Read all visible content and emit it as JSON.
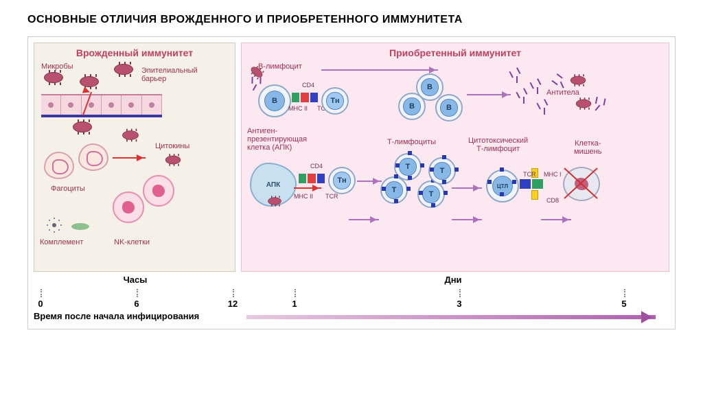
{
  "title": "ОСНОВНЫЕ ОТЛИЧИЯ ВРОЖДЕННОГО И ПРИОБРЕТЕННОГО ИММУНИТЕТА",
  "colors": {
    "innate_bg": "#f5f0e8",
    "adaptive_bg": "#fce8f0",
    "label_text": "#a03050",
    "header_text": "#c04060",
    "microbe": "#b85070",
    "epi_border": "#3838a0",
    "nucleus": "#88b8e8",
    "arrow_purple": "#b070c0",
    "arrow_red": "#e03030",
    "mhc": "#30a060",
    "cd4": "#e04040",
    "tcr": "#3040c0",
    "cd8": "#f8d020",
    "antibody": "#8040a0"
  },
  "innate": {
    "header": "Врожденный иммунитет",
    "microbes_label": "Микробы",
    "epithelial_label": "Эпителиальный\nбарьер",
    "cytokines_label": "Цитокины",
    "phagocytes_label": "Фагоциты",
    "complement_label": "Комплемент",
    "nk_label": "NK-клетки"
  },
  "adaptive": {
    "header": "Приобретенный иммунитет",
    "b_lymphocyte_label": "В-лимфоцит",
    "apc_label": "Антиген-\nпрезентирующая\nклетка (АПК)",
    "apc_short": "АПК",
    "t_lymphocytes_label": "Т-лимфоциты",
    "ctl_label": "Цитотоксический\nТ-лимфоцит",
    "antibodies_label": "Антитела",
    "target_label": "Клетка-\nмишень",
    "cd4": "CD4",
    "cd8": "CD8",
    "mhc2": "MHC II",
    "mhc1": "MHC I",
    "tcr": "TCR",
    "cell_B": "B",
    "cell_Th": "Tн",
    "cell_T": "T",
    "cell_CTL": "ЦТЛ"
  },
  "timeline": {
    "hours": "Часы",
    "days": "Дни",
    "axis_label": "Время после начала инфицирования",
    "ticks": [
      {
        "pos": 10,
        "label": "0"
      },
      {
        "pos": 150,
        "label": "6"
      },
      {
        "pos": 290,
        "label": "12"
      },
      {
        "pos": 380,
        "label": "1"
      },
      {
        "pos": 620,
        "label": "3"
      },
      {
        "pos": 860,
        "label": "5"
      }
    ]
  }
}
